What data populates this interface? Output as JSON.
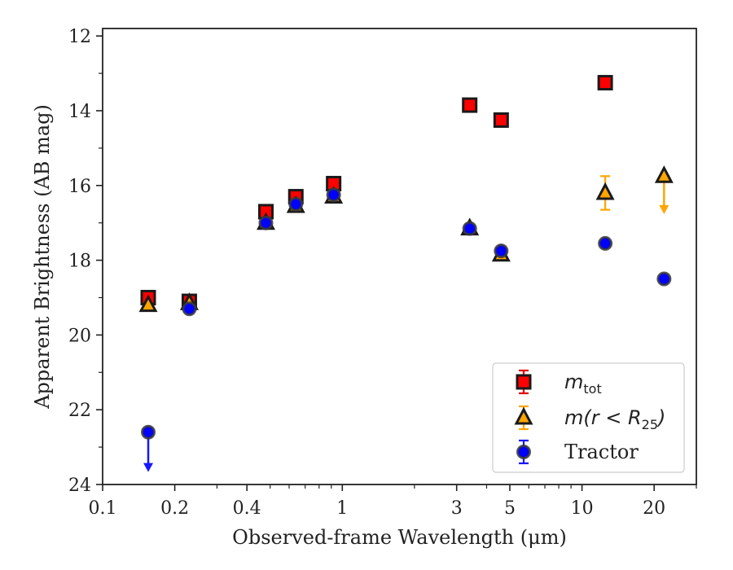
{
  "chart_data": {
    "type": "scatter",
    "xlabel": "Observed-frame Wavelength (μm)",
    "ylabel": "Apparent Brightness (AB mag)",
    "xscale": "log",
    "xlim": [
      0.1,
      30
    ],
    "ylim": [
      24,
      11.8
    ],
    "y_inverted": true,
    "grid": false,
    "legend_position": "lower-right",
    "xticks": [
      {
        "value": 0.1,
        "label": "0.1"
      },
      {
        "value": 0.2,
        "label": "0.2"
      },
      {
        "value": 0.4,
        "label": "0.4"
      },
      {
        "value": 1,
        "label": "1"
      },
      {
        "value": 3,
        "label": "3"
      },
      {
        "value": 5,
        "label": "5"
      },
      {
        "value": 10,
        "label": "10"
      },
      {
        "value": 20,
        "label": "20"
      }
    ],
    "yticks": [
      {
        "value": 12,
        "label": "12"
      },
      {
        "value": 14,
        "label": "14"
      },
      {
        "value": 16,
        "label": "16"
      },
      {
        "value": 18,
        "label": "18"
      },
      {
        "value": 20,
        "label": "20"
      },
      {
        "value": 22,
        "label": "22"
      },
      {
        "value": 24,
        "label": "24"
      }
    ],
    "series": [
      {
        "legend_main": "m",
        "legend_sub": "tot",
        "marker": "square",
        "color": "#ff0000",
        "edge": "#1a1a1a",
        "errcolor": "#e00000",
        "points": [
          {
            "x": 0.155,
            "y": 19.0
          },
          {
            "x": 0.23,
            "y": 19.1
          },
          {
            "x": 0.48,
            "y": 16.7
          },
          {
            "x": 0.64,
            "y": 16.3
          },
          {
            "x": 0.92,
            "y": 15.95
          },
          {
            "x": 3.4,
            "y": 13.85
          },
          {
            "x": 4.6,
            "y": 14.25
          },
          {
            "x": 12.5,
            "y": 13.25
          }
        ]
      },
      {
        "legend_main": "m(r < R",
        "legend_sub": "25",
        "legend_tail": ")",
        "marker": "triangle",
        "color": "#ffa500",
        "edge": "#1a1a1a",
        "errcolor": "#ffa500",
        "points": [
          {
            "x": 0.155,
            "y": 19.2
          },
          {
            "x": 0.23,
            "y": 19.15
          },
          {
            "x": 0.48,
            "y": 17.0
          },
          {
            "x": 0.64,
            "y": 16.55
          },
          {
            "x": 0.92,
            "y": 16.3
          },
          {
            "x": 3.4,
            "y": 17.15
          },
          {
            "x": 4.6,
            "y": 17.85
          },
          {
            "x": 12.5,
            "y": 16.2,
            "yerr": 0.45
          },
          {
            "x": 22.0,
            "y": 15.75,
            "upper_limit": true,
            "arrow_to": 16.7
          }
        ]
      },
      {
        "legend_main": "Tractor",
        "marker": "circle",
        "color": "#0000ff",
        "edge": "#3a3a3a",
        "errcolor": "#1515ff",
        "points": [
          {
            "x": 0.155,
            "y": 22.6,
            "upper_limit": true,
            "arrow_to": 23.6
          },
          {
            "x": 0.23,
            "y": 19.3
          },
          {
            "x": 0.48,
            "y": 17.0
          },
          {
            "x": 0.64,
            "y": 16.5
          },
          {
            "x": 0.92,
            "y": 16.25
          },
          {
            "x": 3.4,
            "y": 17.15
          },
          {
            "x": 4.6,
            "y": 17.75
          },
          {
            "x": 12.5,
            "y": 17.55
          },
          {
            "x": 22.0,
            "y": 18.5
          }
        ]
      }
    ]
  }
}
